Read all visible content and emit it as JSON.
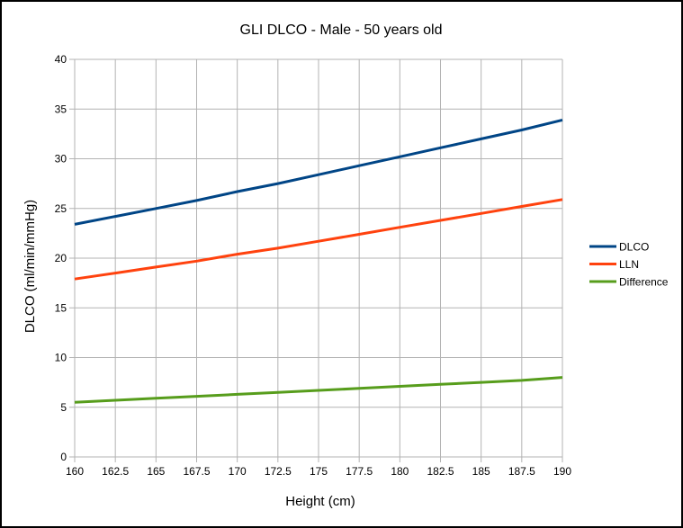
{
  "chart_data": {
    "type": "line",
    "title": "GLI DLCO - Male - 50 years old",
    "xlabel": "Height (cm)",
    "ylabel": "DLCO (ml/min/mmHg)",
    "xlim": [
      160,
      190
    ],
    "ylim": [
      0,
      40
    ],
    "grid": true,
    "legend_position": "right",
    "x_ticks": [
      "160",
      "162.5",
      "165",
      "167.5",
      "170",
      "172.5",
      "175",
      "177.5",
      "180",
      "182.5",
      "185",
      "187.5",
      "190"
    ],
    "y_ticks": [
      "0",
      "5",
      "10",
      "15",
      "20",
      "25",
      "30",
      "35",
      "40"
    ],
    "x": [
      160,
      162.5,
      165,
      167.5,
      170,
      172.5,
      175,
      177.5,
      180,
      182.5,
      185,
      187.5,
      190
    ],
    "series": [
      {
        "name": "DLCO",
        "color": "#004586",
        "values": [
          23.4,
          24.2,
          25.0,
          25.8,
          26.7,
          27.5,
          28.4,
          29.3,
          30.2,
          31.1,
          32.0,
          32.9,
          33.9
        ]
      },
      {
        "name": "LLN",
        "color": "#ff420e",
        "values": [
          17.9,
          18.5,
          19.1,
          19.7,
          20.4,
          21.0,
          21.7,
          22.4,
          23.1,
          23.8,
          24.5,
          25.2,
          25.9
        ]
      },
      {
        "name": "Difference",
        "color": "#579d1c",
        "values": [
          5.5,
          5.7,
          5.9,
          6.1,
          6.3,
          6.5,
          6.7,
          6.9,
          7.1,
          7.3,
          7.5,
          7.7,
          8.0
        ]
      }
    ]
  }
}
